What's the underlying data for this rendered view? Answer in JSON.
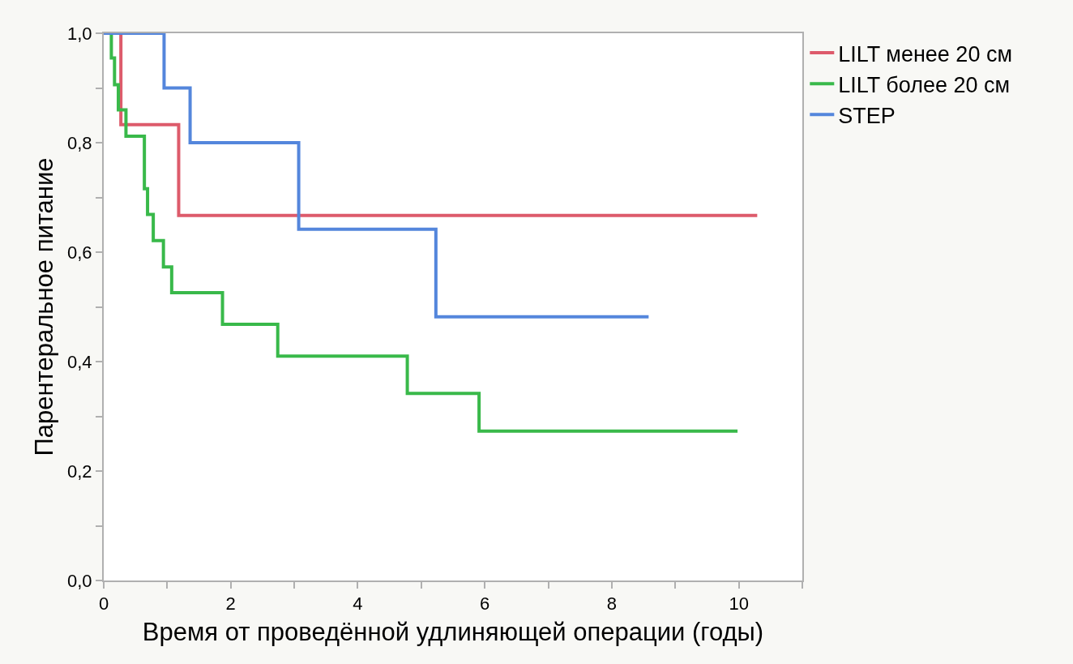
{
  "chart_data": {
    "type": "step",
    "xlabel": "Время от проведённой удлиняющей операции (годы)",
    "ylabel": "Парентеральное питание",
    "xlim": [
      0,
      11
    ],
    "xticks": [
      0,
      {
        "value": 1,
        "label": null
      },
      2,
      {
        "value": 3,
        "label": null
      },
      4,
      {
        "value": 5,
        "label": null
      },
      6,
      {
        "value": 7,
        "label": null
      },
      8,
      {
        "value": 9,
        "label": null
      },
      10,
      {
        "value": 11,
        "label": null
      }
    ],
    "ylim": [
      0,
      1
    ],
    "yticks": [
      {
        "value": 0,
        "label": "0,0"
      },
      {
        "value": 0.1,
        "label": null
      },
      {
        "value": 0.2,
        "label": "0,2"
      },
      {
        "value": 0.3,
        "label": null
      },
      {
        "value": 0.4,
        "label": "0,4"
      },
      {
        "value": 0.5,
        "label": null
      },
      {
        "value": 0.6,
        "label": "0,6"
      },
      {
        "value": 0.7,
        "label": null
      },
      {
        "value": 0.8,
        "label": "0,8"
      },
      {
        "value": 0.9,
        "label": null
      },
      {
        "value": 1,
        "label": "1,0"
      }
    ],
    "grid": false,
    "legend": "top right",
    "marker": "none",
    "line_style": "solid",
    "series": [
      {
        "name": "LILT менее 20 см",
        "color": "#dd5b6b",
        "x": [
          0,
          0.27,
          1.18,
          10.29
        ],
        "values": [
          1,
          0.833,
          0.667,
          0.667
        ]
      },
      {
        "name": "LILT более 20 см",
        "color": "#39b94a",
        "x": [
          0,
          0.12,
          0.17,
          0.23,
          0.35,
          0.64,
          0.69,
          0.78,
          0.94,
          1.07,
          1.87,
          2.74,
          4.78,
          5.91,
          9.98
        ],
        "values": [
          1,
          0.955,
          0.906,
          0.86,
          0.812,
          0.716,
          0.669,
          0.621,
          0.573,
          0.526,
          0.468,
          0.41,
          0.342,
          0.273,
          0.273
        ]
      },
      {
        "name": "STEP",
        "color": "#5486dc",
        "x": [
          0,
          0.95,
          1.36,
          3.07,
          5.23,
          8.58
        ],
        "values": [
          1,
          0.9,
          0.8,
          0.642,
          0.482,
          0.482
        ]
      }
    ]
  }
}
